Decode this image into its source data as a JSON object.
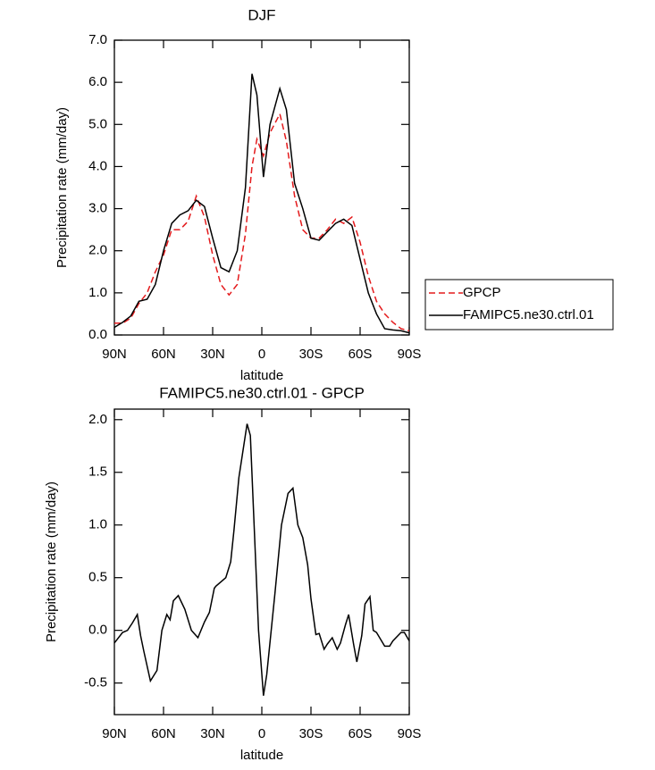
{
  "chart_data": [
    {
      "type": "line",
      "title": "DJF",
      "x_label": "latitude",
      "y_label": "Precipitation rate (mm/day)",
      "x": [
        90,
        85,
        80,
        75,
        70,
        65,
        60,
        55,
        50,
        45,
        40,
        35,
        30,
        25,
        20,
        15,
        10,
        6,
        3,
        -1,
        -5,
        -11,
        -15,
        -20,
        -25,
        -30,
        -35,
        -40,
        -45,
        -50,
        -55,
        -60,
        -65,
        -70,
        -75,
        -80,
        -85,
        -90
      ],
      "series": [
        {
          "name": "GPCP",
          "color": "#e41a1c",
          "dashed": true,
          "values": [
            0.28,
            0.28,
            0.4,
            0.75,
            1.0,
            1.5,
            1.9,
            2.5,
            2.5,
            2.7,
            3.3,
            2.8,
            1.9,
            1.2,
            0.95,
            1.2,
            2.4,
            4.0,
            4.65,
            4.25,
            4.8,
            5.25,
            4.6,
            3.3,
            2.5,
            2.3,
            2.3,
            2.5,
            2.75,
            2.65,
            2.8,
            2.2,
            1.4,
            0.8,
            0.5,
            0.3,
            0.15,
            0.1
          ]
        },
        {
          "name": "FAMIPC5.ne30.ctrl.01",
          "color": "#000000",
          "dashed": false,
          "values": [
            0.18,
            0.3,
            0.45,
            0.8,
            0.85,
            1.2,
            2.0,
            2.65,
            2.85,
            2.95,
            3.2,
            3.05,
            2.3,
            1.6,
            1.5,
            2.0,
            3.5,
            6.2,
            5.7,
            3.75,
            5.0,
            5.85,
            5.35,
            3.6,
            3.0,
            2.3,
            2.25,
            2.45,
            2.65,
            2.75,
            2.6,
            1.8,
            1.0,
            0.5,
            0.15,
            0.12,
            0.1,
            0.05
          ]
        }
      ],
      "xlim": [
        90,
        -90
      ],
      "xticks": [
        {
          "value": 90,
          "label": "90N"
        },
        {
          "value": 60,
          "label": "60N"
        },
        {
          "value": 30,
          "label": "30N"
        },
        0,
        {
          "value": -30,
          "label": "30S"
        },
        {
          "value": -60,
          "label": "60S"
        },
        {
          "value": -90,
          "label": "90S"
        }
      ],
      "ylim": [
        0,
        7
      ],
      "yticks": [
        {
          "value": 0,
          "label": "0.0"
        },
        {
          "value": 1,
          "label": "1.0"
        },
        {
          "value": 2,
          "label": "2.0"
        },
        {
          "value": 3,
          "label": "3.0"
        },
        {
          "value": 4,
          "label": "4.0"
        },
        {
          "value": 5,
          "label": "5.0"
        },
        {
          "value": 6,
          "label": "6.0"
        },
        {
          "value": 7,
          "label": "7.0"
        }
      ],
      "legend": "outside-right"
    },
    {
      "type": "line",
      "title": "FAMIPC5.ne30.ctrl.01 - GPCP",
      "x_label": "latitude",
      "y_label": "Precipitation rate (mm/day)",
      "x": [
        90,
        85,
        82,
        79,
        76,
        74,
        72,
        68,
        64,
        61,
        58,
        56,
        54,
        51,
        47,
        43,
        39,
        35,
        32,
        29,
        28,
        22,
        19,
        17,
        14,
        9,
        7,
        2,
        -1,
        -3,
        -8,
        -12,
        -16,
        -19,
        -22,
        -25,
        -28,
        -30,
        -33,
        -35,
        -38,
        -40,
        -43,
        -46,
        -48,
        -51,
        -53,
        -56,
        -58,
        -61,
        -63,
        -66,
        -68,
        -70,
        -75,
        -78,
        -80,
        -85,
        -87,
        -90
      ],
      "values": [
        -0.12,
        -0.02,
        0.0,
        0.07,
        0.15,
        -0.05,
        -0.2,
        -0.48,
        -0.38,
        0.0,
        0.15,
        0.1,
        0.28,
        0.33,
        0.2,
        0.0,
        -0.07,
        0.08,
        0.17,
        0.4,
        0.42,
        0.5,
        0.65,
        0.95,
        1.45,
        1.96,
        1.85,
        0.0,
        -0.62,
        -0.42,
        0.35,
        1.0,
        1.3,
        1.35,
        1.0,
        0.88,
        0.62,
        0.3,
        -0.04,
        -0.03,
        -0.18,
        -0.13,
        -0.07,
        -0.18,
        -0.12,
        0.05,
        0.15,
        -0.13,
        -0.3,
        -0.05,
        0.25,
        0.32,
        0.0,
        -0.02,
        -0.15,
        -0.15,
        -0.1,
        -0.02,
        -0.02,
        -0.1
      ],
      "color": "#000000",
      "xlim": [
        90,
        -90
      ],
      "xticks": [
        {
          "value": 90,
          "label": "90N"
        },
        {
          "value": 60,
          "label": "60N"
        },
        {
          "value": 30,
          "label": "30N"
        },
        0,
        {
          "value": -30,
          "label": "30S"
        },
        {
          "value": -60,
          "label": "60S"
        },
        {
          "value": -90,
          "label": "90S"
        }
      ],
      "ylim": [
        -0.8,
        2.1
      ],
      "yticks": [
        -0.5,
        {
          "value": 0,
          "label": "0.0"
        },
        0.5,
        {
          "value": 1,
          "label": "1.0"
        },
        1.5,
        {
          "value": 2,
          "label": "2.0"
        }
      ]
    }
  ]
}
